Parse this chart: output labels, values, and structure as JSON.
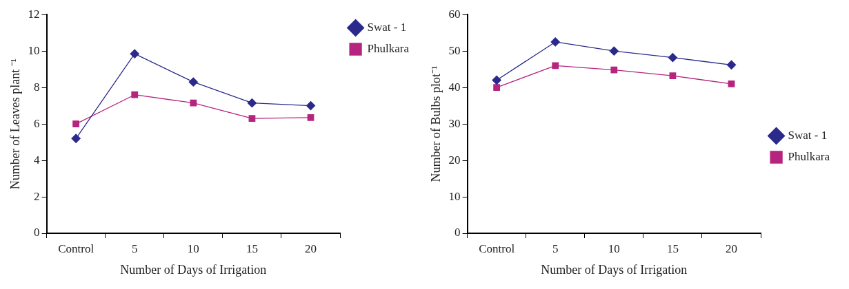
{
  "chart_data": [
    {
      "type": "line",
      "xlabel": "Number of Days of Irrigation",
      "ylabel": "Number of Leaves plant ⁻¹",
      "categories": [
        "Control",
        "5",
        "10",
        "15",
        "20"
      ],
      "series": [
        {
          "name": "Swat - 1",
          "color": "#2b2a8c",
          "marker": "diamond",
          "values": [
            5.2,
            9.85,
            8.3,
            7.15,
            7.0
          ]
        },
        {
          "name": "Phulkara",
          "color": "#b5247f",
          "marker": "square",
          "values": [
            6.0,
            7.6,
            7.15,
            6.3,
            6.35
          ]
        }
      ],
      "ylim": [
        0,
        12
      ],
      "yticks": [
        0,
        2,
        4,
        6,
        8,
        10,
        12
      ],
      "grid": false,
      "legend": "top right",
      "line_style": "solid"
    },
    {
      "type": "line",
      "xlabel": "Number of Days of Irrigation",
      "ylabel": "Number of Bulbs plot⁻¹",
      "categories": [
        "Control",
        "5",
        "10",
        "15",
        "20"
      ],
      "series": [
        {
          "name": "Swat - 1",
          "color": "#2b2a8c",
          "marker": "diamond",
          "values": [
            42,
            52.5,
            50,
            48.2,
            46.2
          ]
        },
        {
          "name": "Phulkara",
          "color": "#b5247f",
          "marker": "square",
          "values": [
            40,
            46,
            44.8,
            43.2,
            41
          ]
        }
      ],
      "ylim": [
        0,
        60
      ],
      "yticks": [
        0,
        10,
        20,
        30,
        40,
        50,
        60
      ],
      "grid": false,
      "legend": "right",
      "line_style": "solid"
    }
  ]
}
